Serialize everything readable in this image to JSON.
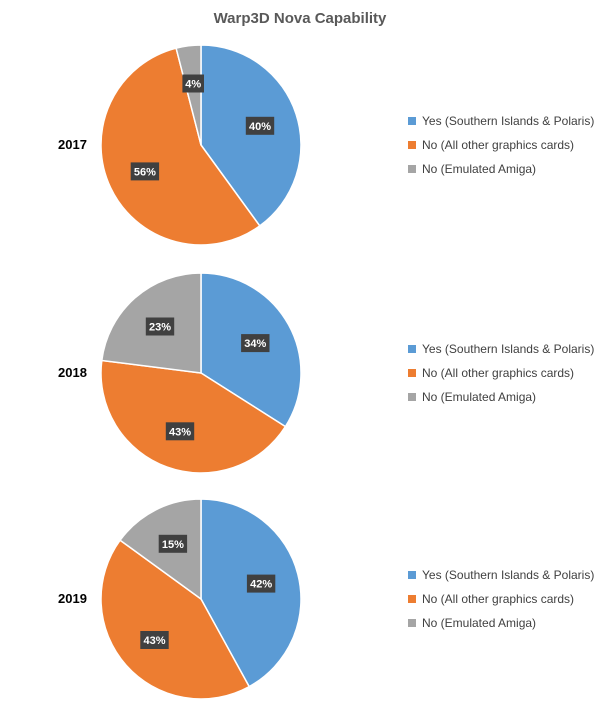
{
  "chart_data": {
    "type": "pie",
    "title": "Warp3D Nova Capability",
    "legend_position": "right",
    "categories": [
      "Yes (Southern Islands & Polaris)",
      "No (All other graphics cards)",
      "No (Emulated Amiga)"
    ],
    "colors": [
      "#5b9bd5",
      "#ed7d31",
      "#a5a5a5"
    ],
    "series": [
      {
        "name": "2017",
        "values": [
          40,
          56,
          4
        ],
        "labels": [
          "40%",
          "56%",
          "4%"
        ]
      },
      {
        "name": "2018",
        "values": [
          34,
          43,
          23
        ],
        "labels": [
          "34%",
          "43%",
          "23%"
        ]
      },
      {
        "name": "2019",
        "values": [
          42,
          43,
          15
        ],
        "labels": [
          "42%",
          "43%",
          "15%"
        ]
      }
    ]
  }
}
